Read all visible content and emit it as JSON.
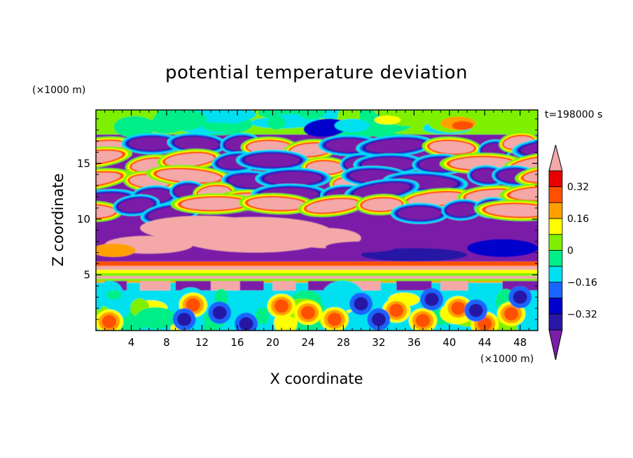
{
  "chart_data": {
    "type": "heatmap",
    "title": "potential temperature deviation",
    "xlabel": "X coordinate",
    "ylabel": "Z coordinate",
    "x_unit": "(×1000 m)",
    "y_unit": "(×1000 m)",
    "time_label": "t=198000 s",
    "xlim": [
      0,
      50
    ],
    "ylim": [
      0,
      19.8
    ],
    "x_ticks": [
      "4",
      "8",
      "12",
      "16",
      "20",
      "24",
      "28",
      "32",
      "36",
      "40",
      "44",
      "48"
    ],
    "y_ticks": [
      "5",
      "10",
      "15"
    ],
    "colorbar": {
      "tick_labels": [
        "0.32",
        "0.16",
        "0",
        "−0.16",
        "−0.32"
      ],
      "levels_low_to_high": [
        -0.4,
        -0.32,
        -0.24,
        -0.16,
        -0.08,
        0,
        0.08,
        0.16,
        0.24,
        0.32,
        0.4
      ],
      "colors_low_to_high": [
        "#7a1ea8",
        "#2818a6",
        "#0000cc",
        "#1a64ff",
        "#00e0f0",
        "#00ee88",
        "#7ef000",
        "#ffff00",
        "#ffa000",
        "#ff5000",
        "#e80000",
        "#f4a8a8"
      ],
      "extend": "both"
    },
    "bands": [
      {
        "z_range": [
          0,
          4.2
        ],
        "description": "lower layer",
        "dominant": [
          "#00e0f0",
          "#00ee88",
          "#7ef000"
        ],
        "accents": [
          "#ff5000",
          "#2818a6"
        ]
      },
      {
        "z_range": [
          4.2,
          6
        ],
        "description": "stripe layer",
        "dominant": [
          "#f4a8a8",
          "#7a1ea8",
          "#7ef000"
        ]
      },
      {
        "z_range": [
          6,
          10.5
        ],
        "description": "mid layer",
        "dominant": [
          "#7a1ea8",
          "#f4a8a8"
        ]
      },
      {
        "z_range": [
          10.5,
          17.5
        ],
        "description": "upper layer",
        "dominant": [
          "#7a1ea8",
          "#f4a8a8",
          "#ff5000",
          "#ffff00"
        ]
      },
      {
        "z_range": [
          17.5,
          19.8
        ],
        "description": "top layer",
        "dominant": [
          "#7ef000",
          "#00ee88"
        ]
      }
    ]
  }
}
